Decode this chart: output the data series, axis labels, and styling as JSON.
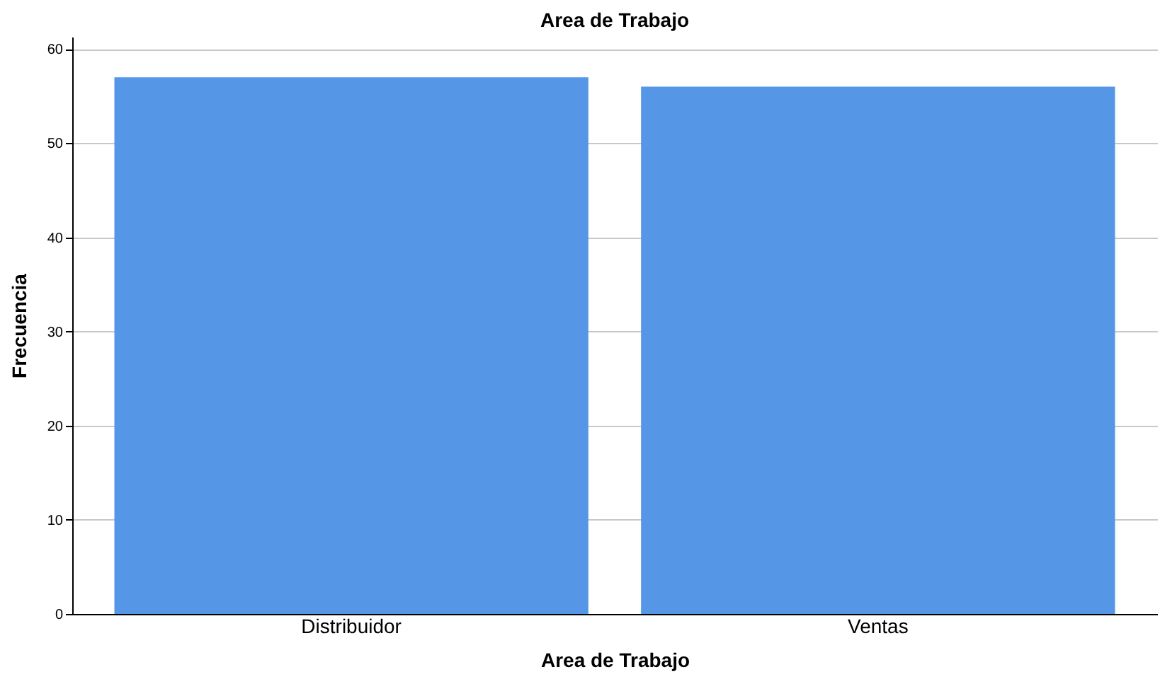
{
  "chart_data": {
    "type": "bar",
    "title": "Area de Trabajo",
    "xlabel": "Area de Trabajo",
    "ylabel": "Frecuencia",
    "categories": [
      "Distribuidor",
      "Ventas"
    ],
    "values": [
      57,
      56
    ],
    "color": "#5596e6",
    "ylim": [
      0,
      61.3
    ],
    "yticks": [
      0,
      10,
      20,
      30,
      40,
      50,
      60
    ],
    "grid": "y"
  }
}
